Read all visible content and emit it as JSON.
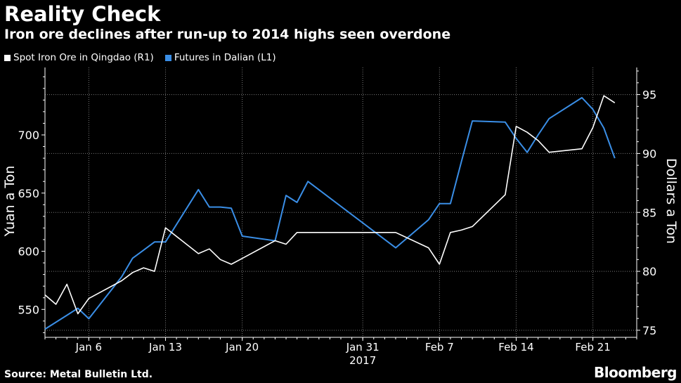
{
  "header": {
    "title": "Reality Check",
    "subtitle": "Iron ore declines after run-up to 2014 highs seen overdone"
  },
  "footer": {
    "source": "Source: Metal Bulletin Ltd.",
    "brand": "Bloomberg"
  },
  "colors": {
    "background": "#000000",
    "spot_series": "#ffffff",
    "futures_series": "#3a8ee6",
    "grid": "#7a7a7a",
    "text": "#ffffff"
  },
  "chart_data": {
    "type": "line",
    "title": "Reality Check",
    "subtitle": "Iron ore declines after run-up to 2014 highs seen overdone",
    "xlabel": "",
    "x_year_label": "2017",
    "legend_position": "top-left",
    "grid": true,
    "x_tick_labels": [
      "Jan 6",
      "Jan 13",
      "Jan 20",
      "Jan 31",
      "Feb 7",
      "Feb 14",
      "Feb 21"
    ],
    "x_tick_dates": [
      "2017-01-06",
      "2017-01-13",
      "2017-01-20",
      "2017-01-31",
      "2017-02-07",
      "2017-02-14",
      "2017-02-21"
    ],
    "xlim": [
      "2017-01-02",
      "2017-02-25"
    ],
    "left_axis": {
      "label": "Yuan a Ton",
      "ylim": [
        526,
        758
      ],
      "ticks": [
        550,
        600,
        650,
        700
      ]
    },
    "right_axis": {
      "label": "Dollars a Ton",
      "ylim": [
        74.4,
        97.3
      ],
      "ticks": [
        75,
        80,
        85,
        90,
        95
      ]
    },
    "series": [
      {
        "name": "Futures in Dalian (L1)",
        "axis": "left",
        "color": "#3a8ee6",
        "points": [
          [
            "2017-01-02",
            533
          ],
          [
            "2017-01-03",
            539
          ],
          [
            "2017-01-04",
            545
          ],
          [
            "2017-01-05",
            551
          ],
          [
            "2017-01-06",
            542
          ],
          [
            "2017-01-09",
            578
          ],
          [
            "2017-01-10",
            594
          ],
          [
            "2017-01-11",
            601
          ],
          [
            "2017-01-12",
            608
          ],
          [
            "2017-01-13",
            608
          ],
          [
            "2017-01-16",
            653
          ],
          [
            "2017-01-17",
            638
          ],
          [
            "2017-01-18",
            638
          ],
          [
            "2017-01-19",
            637
          ],
          [
            "2017-01-20",
            613
          ],
          [
            "2017-01-23",
            609
          ],
          [
            "2017-01-24",
            648
          ],
          [
            "2017-01-25",
            642
          ],
          [
            "2017-01-26",
            660
          ],
          [
            "2017-02-03",
            603
          ],
          [
            "2017-02-06",
            627
          ],
          [
            "2017-02-07",
            641
          ],
          [
            "2017-02-08",
            641
          ],
          [
            "2017-02-09",
            677
          ],
          [
            "2017-02-10",
            712
          ],
          [
            "2017-02-13",
            711
          ],
          [
            "2017-02-14",
            697
          ],
          [
            "2017-02-15",
            685
          ],
          [
            "2017-02-16",
            700
          ],
          [
            "2017-02-17",
            714
          ],
          [
            "2017-02-20",
            732
          ],
          [
            "2017-02-21",
            722
          ],
          [
            "2017-02-22",
            706
          ],
          [
            "2017-02-23",
            680
          ]
        ]
      },
      {
        "name": "Spot Iron Ore in Qingdao (R1)",
        "axis": "right",
        "color": "#ffffff",
        "points": [
          [
            "2017-01-02",
            78.0
          ],
          [
            "2017-01-03",
            77.2
          ],
          [
            "2017-01-04",
            78.9
          ],
          [
            "2017-01-05",
            76.4
          ],
          [
            "2017-01-06",
            77.7
          ],
          [
            "2017-01-09",
            79.2
          ],
          [
            "2017-01-10",
            79.9
          ],
          [
            "2017-01-11",
            80.3
          ],
          [
            "2017-01-12",
            80.0
          ],
          [
            "2017-01-13",
            83.7
          ],
          [
            "2017-01-16",
            81.5
          ],
          [
            "2017-01-17",
            81.9
          ],
          [
            "2017-01-18",
            81.0
          ],
          [
            "2017-01-19",
            80.6
          ],
          [
            "2017-01-20",
            81.1
          ],
          [
            "2017-01-23",
            82.6
          ],
          [
            "2017-01-24",
            82.3
          ],
          [
            "2017-01-25",
            83.3
          ],
          [
            "2017-01-26",
            83.3
          ],
          [
            "2017-01-31",
            83.3
          ],
          [
            "2017-02-03",
            83.3
          ],
          [
            "2017-02-06",
            82.0
          ],
          [
            "2017-02-07",
            80.6
          ],
          [
            "2017-02-08",
            83.3
          ],
          [
            "2017-02-09",
            83.5
          ],
          [
            "2017-02-10",
            83.8
          ],
          [
            "2017-02-13",
            86.5
          ],
          [
            "2017-02-14",
            92.3
          ],
          [
            "2017-02-15",
            91.8
          ],
          [
            "2017-02-16",
            91.1
          ],
          [
            "2017-02-17",
            90.1
          ],
          [
            "2017-02-20",
            90.4
          ],
          [
            "2017-02-21",
            92.2
          ],
          [
            "2017-02-22",
            94.9
          ],
          [
            "2017-02-23",
            94.3
          ]
        ]
      }
    ]
  }
}
